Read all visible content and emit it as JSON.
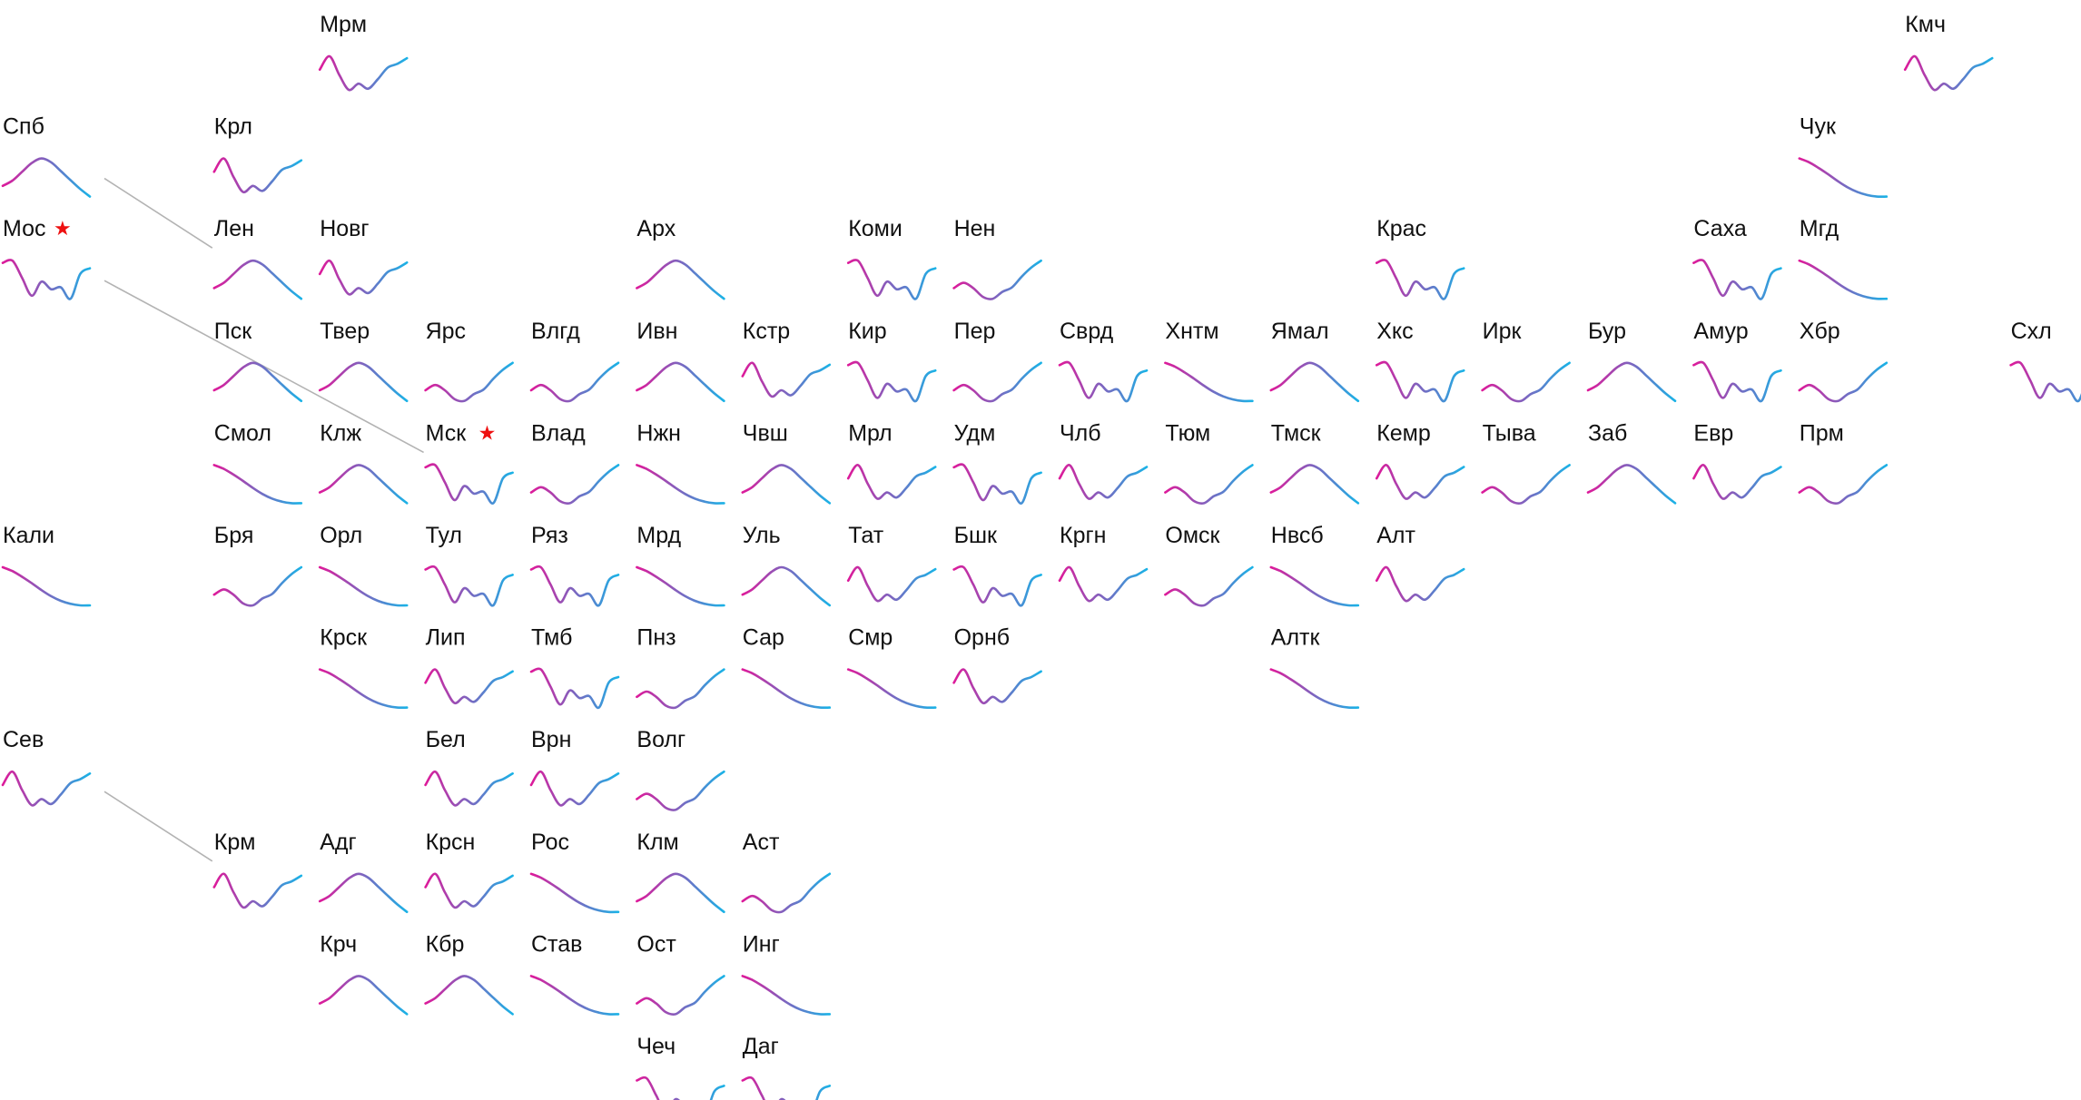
{
  "palette": {
    "line_start": "#dd1a9a",
    "line_end": "#1ab2e6",
    "star": "#ee1111",
    "connector": "#b3b3b3",
    "text": "#111111"
  },
  "capital_marker": "★",
  "curve_shapes": {
    "peak": [
      0.72,
      0.58,
      0.35,
      0.12,
      0.0,
      0.1,
      0.33,
      0.57,
      0.8,
      1.0
    ],
    "wiggle": [
      0.06,
      0.0,
      0.45,
      0.92,
      0.55,
      0.75,
      0.7,
      1.0,
      0.35,
      0.2
    ],
    "valley": [
      0.72,
      0.58,
      0.72,
      0.95,
      1.0,
      0.82,
      0.7,
      0.42,
      0.18,
      0.0
    ],
    "decline": [
      0.0,
      0.1,
      0.25,
      0.42,
      0.6,
      0.76,
      0.88,
      0.96,
      1.0,
      1.0
    ],
    "rise": [
      0.72,
      0.6,
      0.78,
      1.0,
      0.9,
      0.95,
      0.88,
      0.7,
      0.3,
      0.0
    ],
    "dip": [
      0.12,
      0.0,
      0.15,
      0.65,
      0.85,
      0.6,
      0.55,
      0.62,
      0.82,
      1.0
    ],
    "hump": [
      0.42,
      0.26,
      0.1,
      0.0,
      0.08,
      0.28,
      0.5,
      0.72,
      0.9,
      1.0
    ],
    "drop": [
      0.35,
      0.0,
      0.48,
      0.88,
      0.72,
      0.85,
      0.6,
      0.3,
      0.2,
      0.05
    ]
  },
  "regions": [
    {
      "label": "Мрм",
      "col": 3,
      "row": 0,
      "shape": "drop"
    },
    {
      "label": "Кмч",
      "col": 18,
      "row": 0,
      "shape": "drop"
    },
    {
      "label": "Спб",
      "col": 0,
      "row": 1,
      "shape": "peak"
    },
    {
      "label": "Крл",
      "col": 2,
      "row": 1,
      "shape": "drop"
    },
    {
      "label": "Чук",
      "col": 17,
      "row": 1,
      "shape": "decline"
    },
    {
      "label": "Мос",
      "col": 0,
      "row": 2,
      "shape": "wiggle",
      "capital": true
    },
    {
      "label": "Лен",
      "col": 2,
      "row": 2,
      "shape": "peak"
    },
    {
      "label": "Новг",
      "col": 3,
      "row": 2,
      "shape": "drop"
    },
    {
      "label": "Арх",
      "col": 6,
      "row": 2,
      "shape": "peak"
    },
    {
      "label": "Коми",
      "col": 8,
      "row": 2,
      "shape": "wiggle"
    },
    {
      "label": "Нен",
      "col": 9,
      "row": 2,
      "shape": "valley"
    },
    {
      "label": "Крас",
      "col": 13,
      "row": 2,
      "shape": "wiggle"
    },
    {
      "label": "Саха",
      "col": 16,
      "row": 2,
      "shape": "wiggle"
    },
    {
      "label": "Мгд",
      "col": 17,
      "row": 2,
      "shape": "decline"
    },
    {
      "label": "Пск",
      "col": 2,
      "row": 3,
      "shape": "peak"
    },
    {
      "label": "Твер",
      "col": 3,
      "row": 3,
      "shape": "peak"
    },
    {
      "label": "Ярс",
      "col": 4,
      "row": 3,
      "shape": "valley"
    },
    {
      "label": "Влгд",
      "col": 5,
      "row": 3,
      "shape": "valley"
    },
    {
      "label": "Ивн",
      "col": 6,
      "row": 3,
      "shape": "peak"
    },
    {
      "label": "Кстр",
      "col": 7,
      "row": 3,
      "shape": "drop"
    },
    {
      "label": "Кир",
      "col": 8,
      "row": 3,
      "shape": "wiggle"
    },
    {
      "label": "Пер",
      "col": 9,
      "row": 3,
      "shape": "valley"
    },
    {
      "label": "Сврд",
      "col": 10,
      "row": 3,
      "shape": "wiggle"
    },
    {
      "label": "Хнтм",
      "col": 11,
      "row": 3,
      "shape": "decline"
    },
    {
      "label": "Ямал",
      "col": 12,
      "row": 3,
      "shape": "peak"
    },
    {
      "label": "Хкс",
      "col": 13,
      "row": 3,
      "shape": "wiggle"
    },
    {
      "label": "Ирк",
      "col": 14,
      "row": 3,
      "shape": "valley"
    },
    {
      "label": "Бур",
      "col": 15,
      "row": 3,
      "shape": "peak"
    },
    {
      "label": "Амур",
      "col": 16,
      "row": 3,
      "shape": "wiggle"
    },
    {
      "label": "Хбр",
      "col": 17,
      "row": 3,
      "shape": "valley"
    },
    {
      "label": "Схл",
      "col": 19,
      "row": 3,
      "shape": "wiggle"
    },
    {
      "label": "Смол",
      "col": 2,
      "row": 4,
      "shape": "decline"
    },
    {
      "label": "Клж",
      "col": 3,
      "row": 4,
      "shape": "peak"
    },
    {
      "label": "Мск",
      "col": 4,
      "row": 4,
      "shape": "wiggle",
      "capital": true
    },
    {
      "label": "Влад",
      "col": 5,
      "row": 4,
      "shape": "valley"
    },
    {
      "label": "Нжн",
      "col": 6,
      "row": 4,
      "shape": "decline"
    },
    {
      "label": "Чвш",
      "col": 7,
      "row": 4,
      "shape": "peak"
    },
    {
      "label": "Мрл",
      "col": 8,
      "row": 4,
      "shape": "drop"
    },
    {
      "label": "Удм",
      "col": 9,
      "row": 4,
      "shape": "wiggle"
    },
    {
      "label": "Члб",
      "col": 10,
      "row": 4,
      "shape": "drop"
    },
    {
      "label": "Тюм",
      "col": 11,
      "row": 4,
      "shape": "valley"
    },
    {
      "label": "Тмск",
      "col": 12,
      "row": 4,
      "shape": "peak"
    },
    {
      "label": "Кемр",
      "col": 13,
      "row": 4,
      "shape": "drop"
    },
    {
      "label": "Тыва",
      "col": 14,
      "row": 4,
      "shape": "valley"
    },
    {
      "label": "Заб",
      "col": 15,
      "row": 4,
      "shape": "peak"
    },
    {
      "label": "Евр",
      "col": 16,
      "row": 4,
      "shape": "drop"
    },
    {
      "label": "Прм",
      "col": 17,
      "row": 4,
      "shape": "valley"
    },
    {
      "label": "Кали",
      "col": 0,
      "row": 5,
      "shape": "decline"
    },
    {
      "label": "Бря",
      "col": 2,
      "row": 5,
      "shape": "valley"
    },
    {
      "label": "Орл",
      "col": 3,
      "row": 5,
      "shape": "decline"
    },
    {
      "label": "Тул",
      "col": 4,
      "row": 5,
      "shape": "wiggle"
    },
    {
      "label": "Ряз",
      "col": 5,
      "row": 5,
      "shape": "wiggle"
    },
    {
      "label": "Мрд",
      "col": 6,
      "row": 5,
      "shape": "decline"
    },
    {
      "label": "Уль",
      "col": 7,
      "row": 5,
      "shape": "peak"
    },
    {
      "label": "Тат",
      "col": 8,
      "row": 5,
      "shape": "drop"
    },
    {
      "label": "Бшк",
      "col": 9,
      "row": 5,
      "shape": "wiggle"
    },
    {
      "label": "Кргн",
      "col": 10,
      "row": 5,
      "shape": "drop"
    },
    {
      "label": "Омск",
      "col": 11,
      "row": 5,
      "shape": "valley"
    },
    {
      "label": "Нвсб",
      "col": 12,
      "row": 5,
      "shape": "decline"
    },
    {
      "label": "Алт",
      "col": 13,
      "row": 5,
      "shape": "drop"
    },
    {
      "label": "Крск",
      "col": 3,
      "row": 6,
      "shape": "decline"
    },
    {
      "label": "Лип",
      "col": 4,
      "row": 6,
      "shape": "drop"
    },
    {
      "label": "Тмб",
      "col": 5,
      "row": 6,
      "shape": "wiggle"
    },
    {
      "label": "Пнз",
      "col": 6,
      "row": 6,
      "shape": "valley"
    },
    {
      "label": "Сар",
      "col": 7,
      "row": 6,
      "shape": "decline"
    },
    {
      "label": "Смр",
      "col": 8,
      "row": 6,
      "shape": "decline"
    },
    {
      "label": "Орнб",
      "col": 9,
      "row": 6,
      "shape": "drop"
    },
    {
      "label": "Алтк",
      "col": 12,
      "row": 6,
      "shape": "decline"
    },
    {
      "label": "Сев",
      "col": 0,
      "row": 7,
      "shape": "drop"
    },
    {
      "label": "Бел",
      "col": 4,
      "row": 7,
      "shape": "drop"
    },
    {
      "label": "Врн",
      "col": 5,
      "row": 7,
      "shape": "drop"
    },
    {
      "label": "Волг",
      "col": 6,
      "row": 7,
      "shape": "valley"
    },
    {
      "label": "Крм",
      "col": 2,
      "row": 8,
      "shape": "drop"
    },
    {
      "label": "Адг",
      "col": 3,
      "row": 8,
      "shape": "peak"
    },
    {
      "label": "Крсн",
      "col": 4,
      "row": 8,
      "shape": "drop"
    },
    {
      "label": "Рос",
      "col": 5,
      "row": 8,
      "shape": "decline"
    },
    {
      "label": "Клм",
      "col": 6,
      "row": 8,
      "shape": "peak"
    },
    {
      "label": "Аст",
      "col": 7,
      "row": 8,
      "shape": "valley"
    },
    {
      "label": "Крч",
      "col": 3,
      "row": 9,
      "shape": "peak"
    },
    {
      "label": "Кбр",
      "col": 4,
      "row": 9,
      "shape": "peak"
    },
    {
      "label": "Став",
      "col": 5,
      "row": 9,
      "shape": "decline"
    },
    {
      "label": "Ост",
      "col": 6,
      "row": 9,
      "shape": "valley"
    },
    {
      "label": "Инг",
      "col": 7,
      "row": 9,
      "shape": "decline"
    },
    {
      "label": "Чеч",
      "col": 6,
      "row": 10,
      "shape": "wiggle"
    },
    {
      "label": "Даг",
      "col": 7,
      "row": 10,
      "shape": "wiggle"
    }
  ],
  "connectors": [
    {
      "from": "Спб",
      "to": "Лен"
    },
    {
      "from": "Мос",
      "to": "Мск"
    },
    {
      "from": "Сев",
      "to": "Крм"
    }
  ]
}
